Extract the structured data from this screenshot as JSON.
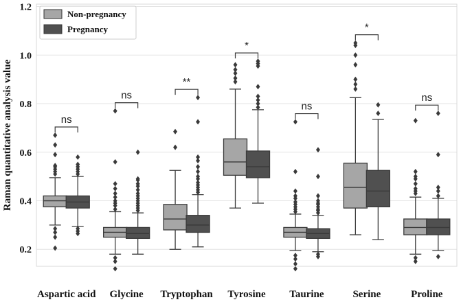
{
  "chart_data": {
    "type": "boxplot",
    "ylabel": "Raman quantitative analysis value",
    "xlabel": "",
    "ylim": [
      0.13,
      1.21
    ],
    "yticks": [
      0.2,
      0.4,
      0.6,
      0.8,
      1.0,
      1.2
    ],
    "ytick_labels": [
      "0.2",
      "0.4",
      "0.6",
      "0.8",
      "1.0",
      "1.2"
    ],
    "grid": "horizontal",
    "legend_position": "top-left",
    "series": [
      {
        "name": "Non-pregnancy",
        "color": "#a6a6a6"
      },
      {
        "name": "Pregnancy",
        "color": "#505050"
      }
    ],
    "categories": [
      {
        "name": "Aspartic acid",
        "significance": "ns",
        "boxes": [
          {
            "whisker_low": 0.3,
            "q1": 0.375,
            "median": 0.4,
            "q3": 0.42,
            "whisker_high": 0.495,
            "outliers": [
              0.205,
              0.25,
              0.27,
              0.285,
              0.51,
              0.52,
              0.53,
              0.54,
              0.545,
              0.59,
              0.63,
              0.67
            ]
          },
          {
            "whisker_low": 0.295,
            "q1": 0.37,
            "median": 0.395,
            "q3": 0.42,
            "whisker_high": 0.5,
            "outliers": [
              0.265,
              0.275,
              0.285,
              0.51,
              0.52,
              0.53,
              0.54,
              0.55,
              0.58
            ]
          }
        ]
      },
      {
        "name": "Glycine",
        "significance": "ns",
        "boxes": [
          {
            "whisker_low": 0.18,
            "q1": 0.25,
            "median": 0.27,
            "q3": 0.29,
            "whisker_high": 0.355,
            "outliers": [
              0.12,
              0.15,
              0.165,
              0.365,
              0.38,
              0.39,
              0.4,
              0.415,
              0.43,
              0.45,
              0.47,
              0.56,
              0.77
            ]
          },
          {
            "whisker_low": 0.18,
            "q1": 0.245,
            "median": 0.265,
            "q3": 0.29,
            "whisker_high": 0.35,
            "outliers": [
              0.36,
              0.37,
              0.38,
              0.39,
              0.4,
              0.41,
              0.42,
              0.43,
              0.445,
              0.46,
              0.47,
              0.485,
              0.49,
              0.6
            ]
          }
        ]
      },
      {
        "name": "Tryptophan",
        "significance": "**",
        "boxes": [
          {
            "whisker_low": 0.2,
            "q1": 0.28,
            "median": 0.325,
            "q3": 0.385,
            "whisker_high": 0.525,
            "outliers": [
              0.62,
              0.685
            ]
          },
          {
            "whisker_low": 0.21,
            "q1": 0.27,
            "median": 0.3,
            "q3": 0.34,
            "whisker_high": 0.425,
            "outliers": [
              0.435,
              0.445,
              0.455,
              0.465,
              0.475,
              0.49,
              0.5,
              0.52,
              0.54,
              0.565,
              0.58,
              0.725,
              0.825
            ]
          }
        ]
      },
      {
        "name": "Tyrosine",
        "significance": "*",
        "boxes": [
          {
            "whisker_low": 0.37,
            "q1": 0.505,
            "median": 0.56,
            "q3": 0.655,
            "whisker_high": 0.86,
            "outliers": [
              0.89,
              0.905,
              0.925,
              0.94,
              0.96
            ]
          },
          {
            "whisker_low": 0.39,
            "q1": 0.495,
            "median": 0.54,
            "q3": 0.605,
            "whisker_high": 0.775,
            "outliers": [
              0.785,
              0.8,
              0.815,
              0.83,
              0.87,
              0.955,
              0.965,
              0.975
            ]
          }
        ]
      },
      {
        "name": "Taurine",
        "significance": "ns",
        "boxes": [
          {
            "whisker_low": 0.195,
            "q1": 0.25,
            "median": 0.27,
            "q3": 0.29,
            "whisker_high": 0.345,
            "outliers": [
              0.12,
              0.14,
              0.16,
              0.175,
              0.355,
              0.365,
              0.375,
              0.385,
              0.395,
              0.41,
              0.42,
              0.44,
              0.52,
              0.725
            ]
          },
          {
            "whisker_low": 0.19,
            "q1": 0.245,
            "median": 0.265,
            "q3": 0.285,
            "whisker_high": 0.34,
            "outliers": [
              0.17,
              0.18,
              0.35,
              0.36,
              0.365,
              0.375,
              0.385,
              0.39,
              0.4,
              0.42,
              0.5,
              0.61
            ]
          }
        ]
      },
      {
        "name": "Serine",
        "significance": "*",
        "boxes": [
          {
            "whisker_low": 0.26,
            "q1": 0.37,
            "median": 0.455,
            "q3": 0.555,
            "whisker_high": 0.825,
            "outliers": [
              0.86,
              0.88,
              0.9,
              0.96,
              1.0,
              1.04,
              1.05
            ]
          },
          {
            "whisker_low": 0.24,
            "q1": 0.375,
            "median": 0.44,
            "q3": 0.525,
            "whisker_high": 0.735,
            "outliers": [
              0.76,
              0.795
            ]
          }
        ]
      },
      {
        "name": "Proline",
        "significance": "ns",
        "boxes": [
          {
            "whisker_low": 0.18,
            "q1": 0.26,
            "median": 0.29,
            "q3": 0.325,
            "whisker_high": 0.415,
            "outliers": [
              0.15,
              0.165,
              0.43,
              0.44,
              0.45,
              0.47,
              0.49,
              0.5,
              0.52,
              0.73
            ]
          },
          {
            "whisker_low": 0.195,
            "q1": 0.26,
            "median": 0.29,
            "q3": 0.325,
            "whisker_high": 0.41,
            "outliers": [
              0.17,
              0.42,
              0.44,
              0.455,
              0.59,
              0.76
            ]
          }
        ]
      }
    ]
  }
}
